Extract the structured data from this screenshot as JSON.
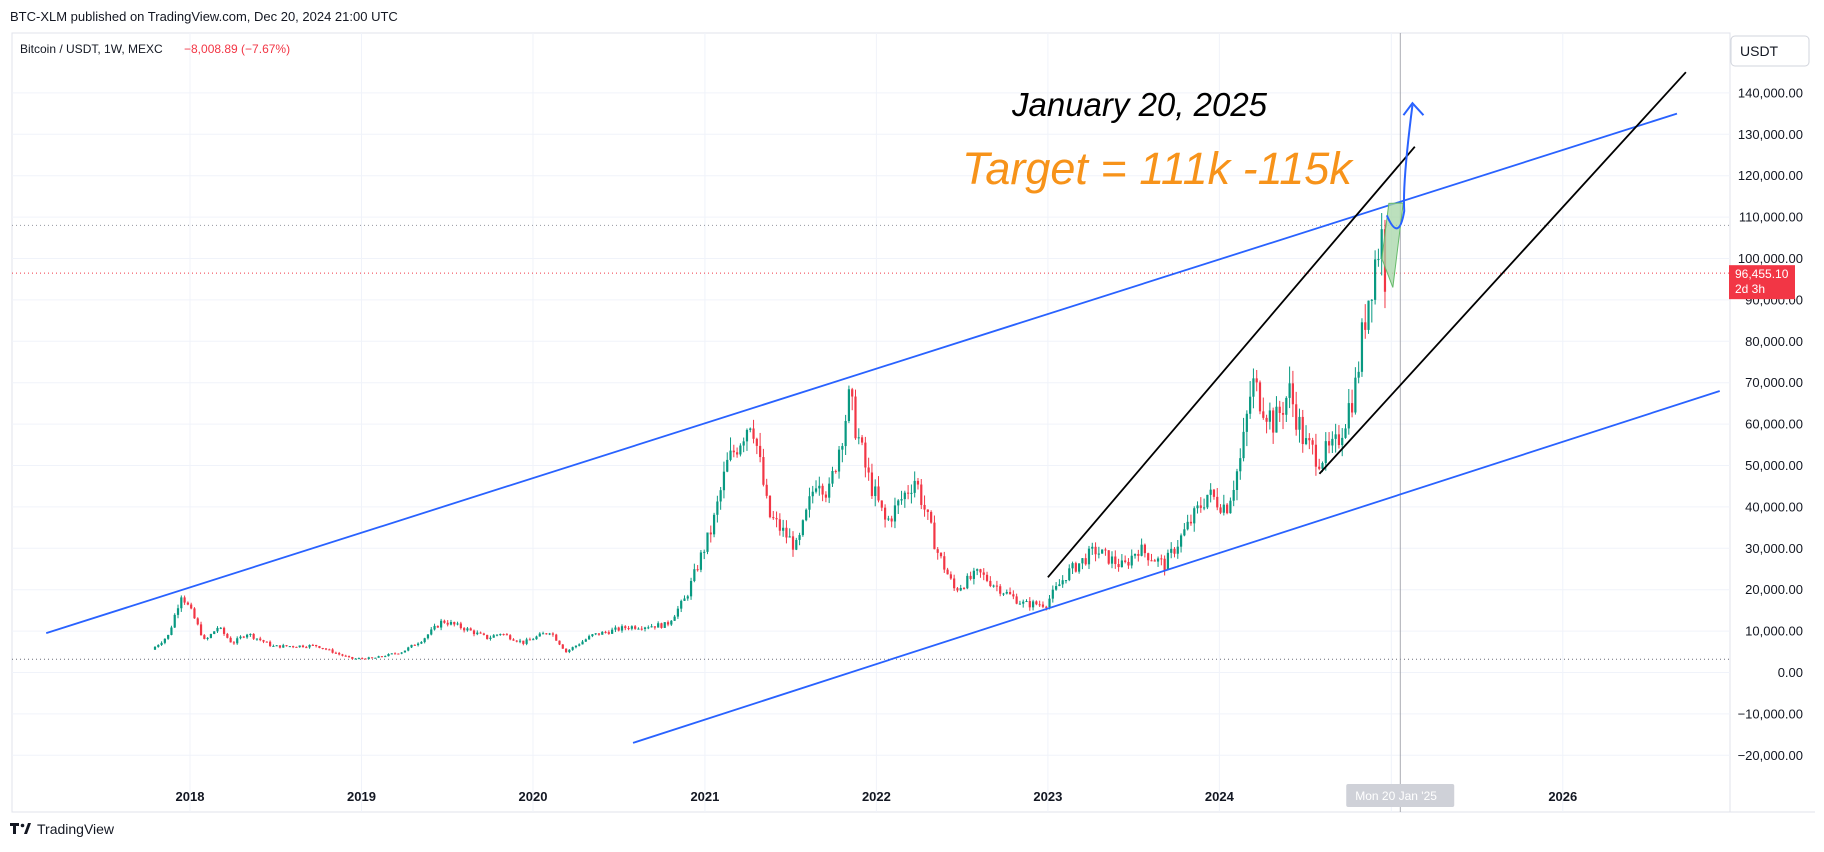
{
  "header": {
    "published": "BTC-XLM published on TradingView.com, Dec 20, 2024 21:00 UTC",
    "symbol": "Bitcoin / USDT, 1W, MEXC",
    "change": "−8,008.89 (−7.67%)"
  },
  "currency_button": "USDT",
  "price_label": {
    "price": "96,455.10",
    "countdown": "2d 3h"
  },
  "crosshair_label": "Mon 20 Jan '25",
  "annotations": {
    "date_text": "January 20, 2025",
    "target_text": "Target = 111k -115k"
  },
  "footer": {
    "brand": "TradingView"
  },
  "colors": {
    "up": "#089981",
    "down": "#f23645",
    "channel": "#2962ff",
    "trend": "#000000",
    "target": "#f7931a",
    "price_line": "#f23645",
    "projection_fill": "#a5d6a7"
  },
  "chart_data": {
    "type": "candlestick",
    "timeframe": "1W",
    "ylim": [
      -25000,
      150000
    ],
    "y_ticks": [
      "140,000.00",
      "130,000.00",
      "120,000.00",
      "110,000.00",
      "100,000.00",
      "90,000.00",
      "80,000.00",
      "70,000.00",
      "60,000.00",
      "50,000.00",
      "40,000.00",
      "30,000.00",
      "20,000.00",
      "10,000.00",
      "0.00",
      "−10,000.00",
      "−20,000.00"
    ],
    "x_ticks": [
      "2018",
      "2019",
      "2020",
      "2021",
      "2022",
      "2023",
      "2024",
      "2025",
      "2026"
    ],
    "dotted_levels": [
      108000,
      3200
    ],
    "current_price": 96455.1,
    "price_path": [
      [
        "2017-10-15",
        5500
      ],
      [
        "2017-11-20",
        9000
      ],
      [
        "2017-12-17",
        19000
      ],
      [
        "2018-01-10",
        14000
      ],
      [
        "2018-02-05",
        7500
      ],
      [
        "2018-03-05",
        11000
      ],
      [
        "2018-04-05",
        7000
      ],
      [
        "2018-05-05",
        9500
      ],
      [
        "2018-07-01",
        6300
      ],
      [
        "2018-10-01",
        6500
      ],
      [
        "2018-11-20",
        4300
      ],
      [
        "2018-12-15",
        3300
      ],
      [
        "2019-02-01",
        3500
      ],
      [
        "2019-04-01",
        5000
      ],
      [
        "2019-05-15",
        8000
      ],
      [
        "2019-06-26",
        12500
      ],
      [
        "2019-08-15",
        10500
      ],
      [
        "2019-09-30",
        8300
      ],
      [
        "2019-10-27",
        9500
      ],
      [
        "2019-12-15",
        7200
      ],
      [
        "2020-02-10",
        10000
      ],
      [
        "2020-03-15",
        5000
      ],
      [
        "2020-05-10",
        9000
      ],
      [
        "2020-07-25",
        11000
      ],
      [
        "2020-10-15",
        11500
      ],
      [
        "2020-11-25",
        18000
      ],
      [
        "2020-12-27",
        28000
      ],
      [
        "2021-01-20",
        35000
      ],
      [
        "2021-02-20",
        50000
      ],
      [
        "2021-04-14",
        62000
      ],
      [
        "2021-05-20",
        38000
      ],
      [
        "2021-07-20",
        30000
      ],
      [
        "2021-09-01",
        48000
      ],
      [
        "2021-09-25",
        43000
      ],
      [
        "2021-11-08",
        66000
      ],
      [
        "2021-12-15",
        48000
      ],
      [
        "2022-01-25",
        36000
      ],
      [
        "2022-03-28",
        47000
      ],
      [
        "2022-05-15",
        29000
      ],
      [
        "2022-06-20",
        20000
      ],
      [
        "2022-08-10",
        24000
      ],
      [
        "2022-10-10",
        19000
      ],
      [
        "2022-11-15",
        16500
      ],
      [
        "2022-12-31",
        16600
      ],
      [
        "2023-02-15",
        24000
      ],
      [
        "2023-04-15",
        29500
      ],
      [
        "2023-06-15",
        25500
      ],
      [
        "2023-07-15",
        30000
      ],
      [
        "2023-09-10",
        26000
      ],
      [
        "2023-10-25",
        34500
      ],
      [
        "2023-12-10",
        43000
      ],
      [
        "2024-01-20",
        40000
      ],
      [
        "2024-02-20",
        52000
      ],
      [
        "2024-03-14",
        70000
      ],
      [
        "2024-05-01",
        60000
      ],
      [
        "2024-06-01",
        68000
      ],
      [
        "2024-07-05",
        55000
      ],
      [
        "2024-08-05",
        52000
      ],
      [
        "2024-09-06",
        54000
      ],
      [
        "2024-10-20",
        69000
      ],
      [
        "2024-11-12",
        88000
      ],
      [
        "2024-12-05",
        102000
      ],
      [
        "2024-12-17",
        106000
      ],
      [
        "2024-12-20",
        96455
      ]
    ],
    "channel_upper": [
      [
        "2017-03-01",
        9500
      ],
      [
        "2026-09-01",
        135000
      ]
    ],
    "channel_lower": [
      [
        "2020-08-01",
        -17000
      ],
      [
        "2026-12-01",
        68000
      ]
    ],
    "trend_upper": [
      [
        "2023-01-01",
        23000
      ],
      [
        "2025-02-20",
        127000
      ]
    ],
    "trend_lower": [
      [
        "2024-08-01",
        48000
      ],
      [
        "2026-09-20",
        145000
      ]
    ],
    "projection_arrow": [
      [
        "2024-12-31",
        108000
      ],
      [
        "2025-01-20",
        111000
      ],
      [
        "2025-02-15",
        138000
      ]
    ],
    "crosshair_date": "2025-01-20"
  }
}
